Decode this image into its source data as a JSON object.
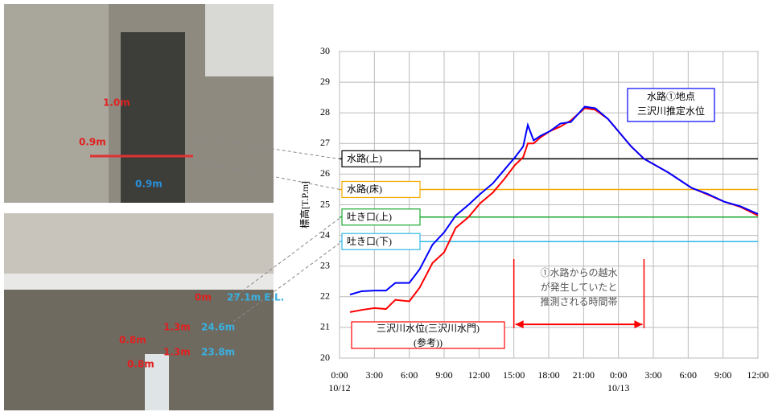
{
  "photos": {
    "top_labels": [
      {
        "text": "1.0m",
        "color": "#e02020"
      },
      {
        "text": "0.9m",
        "color": "#e02020"
      },
      {
        "text": "0.9m",
        "color": "#2a8fd8"
      }
    ],
    "bottom_labels": [
      {
        "text": "0m",
        "color": "#e02020"
      },
      {
        "text": "27.1m  E.L.",
        "color": "#3ab0e0"
      },
      {
        "text": "1.3m",
        "color": "#e02020"
      },
      {
        "text": "24.6m",
        "color": "#3ab0e0"
      },
      {
        "text": "0.8m",
        "color": "#e02020"
      },
      {
        "text": "1.3m",
        "color": "#e02020"
      },
      {
        "text": "23.8m",
        "color": "#3ab0e0"
      },
      {
        "text": "0.8m",
        "color": "#e02020"
      }
    ]
  },
  "chart_data": {
    "type": "line",
    "y_label": "標高[T.P.m]",
    "ylim": [
      20,
      30
    ],
    "yticks": [
      20,
      21,
      22,
      23,
      24,
      25,
      26,
      27,
      28,
      29,
      30
    ],
    "xlim": [
      0,
      36
    ],
    "xticks": [
      {
        "value": 0,
        "label": "0:00"
      },
      {
        "value": 3,
        "label": "3:00"
      },
      {
        "value": 6,
        "label": "6:00"
      },
      {
        "value": 9,
        "label": "9:00"
      },
      {
        "value": 12,
        "label": "12:00"
      },
      {
        "value": 15,
        "label": "15:00"
      },
      {
        "value": 18,
        "label": "18:00"
      },
      {
        "value": 21,
        "label": "21:00"
      },
      {
        "value": 24,
        "label": "0:00"
      },
      {
        "value": 27,
        "label": "3:00"
      },
      {
        "value": 30,
        "label": "6:00"
      },
      {
        "value": 33,
        "label": "9:00"
      },
      {
        "value": 36,
        "label": "12:00"
      }
    ],
    "x_date_labels": [
      {
        "value": 0,
        "label": "10/12"
      },
      {
        "value": 24,
        "label": "10/13"
      }
    ],
    "grid": true,
    "x": [
      0.9,
      1.9,
      3,
      4,
      4.8,
      6,
      6.9,
      8,
      9,
      10,
      11.1,
      12.1,
      13.2,
      14.2,
      15.1,
      15.8,
      16.2,
      16.7,
      17.3,
      18.1,
      19,
      19.9,
      21.1,
      22,
      23.1,
      24.1,
      25.1,
      26.2,
      28.3,
      30.3,
      31.7,
      33.1,
      34.5,
      36
    ],
    "series": [
      {
        "name": "水路①地点\n三沢川推定水位",
        "color": "#0000ff",
        "values": [
          22.07,
          22.18,
          22.2,
          22.2,
          22.45,
          22.45,
          22.9,
          23.7,
          24.1,
          24.65,
          25.0,
          25.35,
          25.7,
          26.15,
          26.55,
          26.9,
          27.6,
          27.1,
          27.25,
          27.4,
          27.65,
          27.7,
          28.2,
          28.15,
          27.8,
          27.35,
          26.9,
          26.5,
          26.05,
          25.55,
          25.35,
          25.1,
          24.95,
          24.7
        ]
      },
      {
        "name": "三沢川水位(三沢川水門)\n(参考))",
        "color": "#ff0000",
        "values": [
          21.5,
          21.57,
          21.63,
          21.6,
          21.9,
          21.85,
          22.3,
          23.1,
          23.45,
          24.25,
          24.6,
          25.05,
          25.4,
          25.85,
          26.3,
          26.55,
          27.0,
          27.0,
          27.2,
          27.4,
          27.55,
          27.75,
          28.15,
          28.1,
          27.8,
          27.35,
          26.9,
          26.5,
          26.05,
          25.55,
          25.33,
          25.1,
          24.93,
          24.65
        ]
      }
    ],
    "reference_lines": [
      {
        "label": "水路(上)",
        "value": 26.5,
        "color": "#000000"
      },
      {
        "label": "水路(床)",
        "value": 25.5,
        "color": "#f5a800"
      },
      {
        "label": "吐き口(上)",
        "value": 24.6,
        "color": "#1aa832"
      },
      {
        "label": "吐き口(下)",
        "value": 23.8,
        "color": "#30b8e8"
      }
    ],
    "annotation": {
      "text": "①水路からの越水\nが発生していたと\n推測される時間帯",
      "span": [
        15,
        26.2
      ],
      "y": 21.1,
      "color": "#ff0000"
    }
  }
}
